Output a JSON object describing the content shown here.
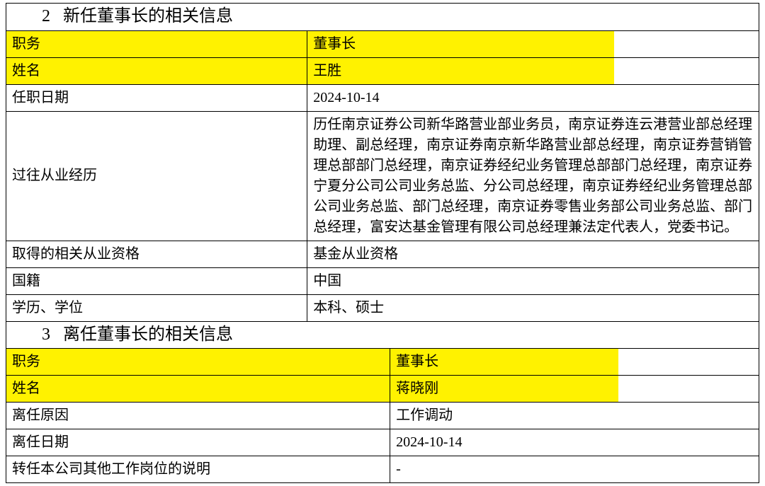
{
  "section1": {
    "number": "2",
    "title": "新任董事长的相关信息"
  },
  "table1": {
    "rows": [
      {
        "label": "职务",
        "value": "董事长",
        "label_hl": true,
        "value_hl_ratio": 0.68
      },
      {
        "label": "姓名",
        "value": "王胜",
        "label_hl": true,
        "value_hl_ratio": 0.68
      },
      {
        "label": "任职日期",
        "value": "2024-10-14"
      },
      {
        "label": "过往从业经历",
        "value": "历任南京证券公司新华路营业部业务员，南京证券连云港营业部总经理助理、副总经理，南京证券南京新华路营业部总经理，南京证券营销管理总部部门总经理，南京证券经纪业务管理总部部门总经理，南京证券宁夏分公司公司业务总监、分公司总经理，南京证券经纪业务管理总部公司业务总监、部门总经理，南京证券零售业务部公司业务总监、部门总经理，富安达基金管理有限公司总经理兼法定代表人，党委书记。"
      },
      {
        "label": "取得的相关从业资格",
        "value": "基金从业资格"
      },
      {
        "label": "国籍",
        "value": "中国"
      },
      {
        "label": "学历、学位",
        "value": "本科、硕士"
      }
    ]
  },
  "section2": {
    "number": "3",
    "title": "离任董事长的相关信息"
  },
  "table2": {
    "rows": [
      {
        "label": "职务",
        "value": "董事长",
        "label_hl": true,
        "value_hl_ratio": 0.62
      },
      {
        "label": "姓名",
        "value": "蒋晓刚",
        "label_hl": true,
        "value_hl_ratio": 0.62
      },
      {
        "label": "离任原因",
        "value": "工作调动"
      },
      {
        "label": "离任日期",
        "value": "2024-10-14"
      },
      {
        "label": "转任本公司其他工作岗位的说明",
        "value": "-"
      }
    ]
  }
}
